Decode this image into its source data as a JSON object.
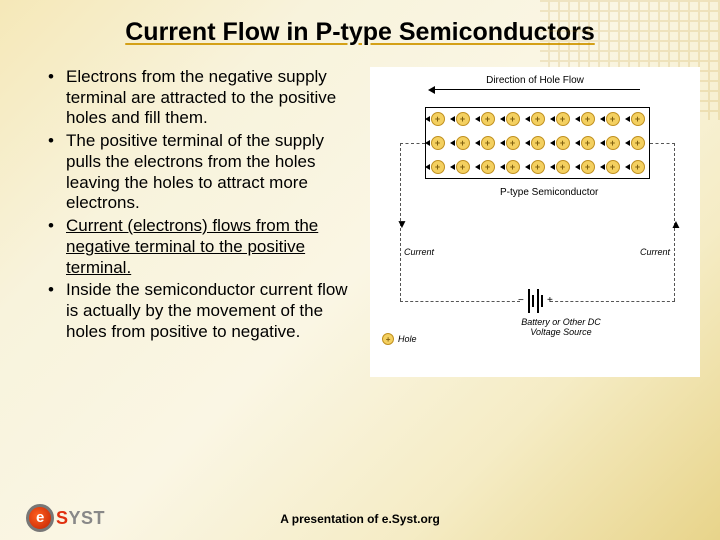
{
  "title": "Current Flow in P-type Semiconductors",
  "bullets": [
    "Electrons from the negative supply terminal are attracted to the positive holes and fill them.",
    "The positive terminal of the supply pulls the electrons from the holes leaving the holes to attract more electrons.",
    "Current (electrons) flows from the negative terminal to the positive terminal.",
    "Inside the semiconductor current flow is actually by the movement of the holes from positive to negative."
  ],
  "bullet_underlined_index": 2,
  "diagram": {
    "top_label": "Direction of Hole Flow",
    "box_label": "P-type Semiconductor",
    "current_label_left": "Current",
    "current_label_right": "Current",
    "battery_label": "Battery or Other DC Voltage Source",
    "legend_hole": "Hole",
    "battery_minus": "−",
    "battery_plus": "+",
    "hole_grid": {
      "rows": 3,
      "cols": 9,
      "symbol": "+"
    },
    "colors": {
      "hole_fill": "#f4d060",
      "hole_border": "#c09020",
      "hole_text": "#806010",
      "wire": "#555555",
      "box_border": "#000000",
      "bg": "#ffffff"
    }
  },
  "footer": "A presentation of e.Syst.org",
  "logo": {
    "e": "e",
    "text1": "S",
    "text2": "YST"
  },
  "styling": {
    "title_fontsize": 25,
    "bullet_fontsize": 17,
    "footer_fontsize": 12,
    "title_underline_color": "#d4a017",
    "background_gradient": [
      "#f5e8b8",
      "#f8f3dc",
      "#faf6e4",
      "#f5ecc5",
      "#e8d48a"
    ]
  }
}
